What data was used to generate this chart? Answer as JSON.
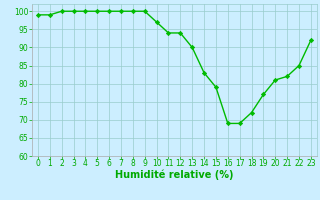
{
  "x": [
    0,
    1,
    2,
    3,
    4,
    5,
    6,
    7,
    8,
    9,
    10,
    11,
    12,
    13,
    14,
    15,
    16,
    17,
    18,
    19,
    20,
    21,
    22,
    23
  ],
  "y": [
    99,
    99,
    100,
    100,
    100,
    100,
    100,
    100,
    100,
    100,
    97,
    94,
    94,
    90,
    83,
    79,
    69,
    69,
    72,
    77,
    81,
    82,
    85,
    92
  ],
  "line_color": "#00bb00",
  "marker_color": "#00bb00",
  "bg_color": "#cceeff",
  "grid_color": "#99cccc",
  "axis_color": "#00aa00",
  "xlabel": "Humidité relative (%)",
  "xlim": [
    -0.5,
    23.5
  ],
  "ylim": [
    60,
    102
  ],
  "yticks": [
    60,
    65,
    70,
    75,
    80,
    85,
    90,
    95,
    100
  ],
  "xticks": [
    0,
    1,
    2,
    3,
    4,
    5,
    6,
    7,
    8,
    9,
    10,
    11,
    12,
    13,
    14,
    15,
    16,
    17,
    18,
    19,
    20,
    21,
    22,
    23
  ],
  "tick_fontsize": 5.5,
  "xlabel_fontsize": 7
}
